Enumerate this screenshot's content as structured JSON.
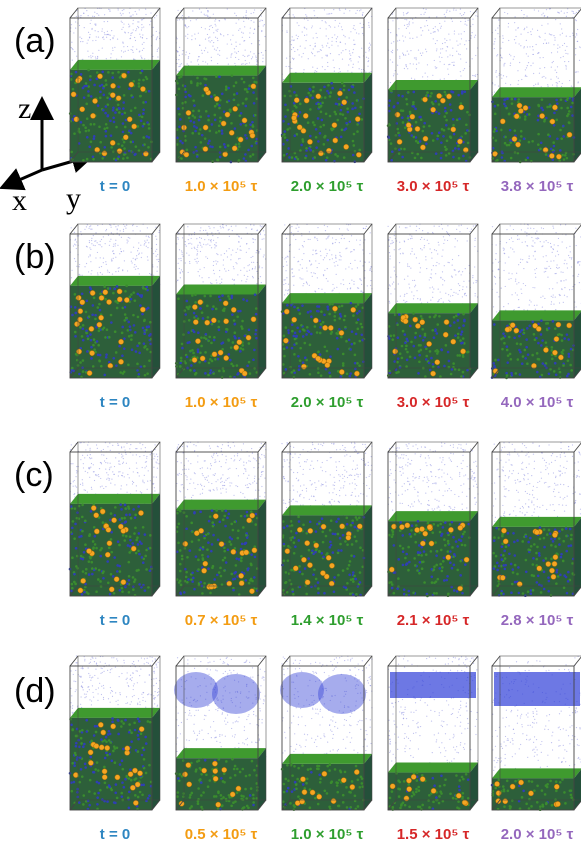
{
  "axes": {
    "z": "z",
    "x": "x",
    "y": "y"
  },
  "rows": [
    {
      "label": "(a)",
      "times": [
        "t = 0",
        "1.0 × 10⁵ τ",
        "2.0 × 10⁵ τ",
        "3.0 × 10⁵ τ",
        "3.8 × 10⁵ τ"
      ],
      "film_fraction": [
        0.64,
        0.6,
        0.55,
        0.5,
        0.45
      ],
      "vapor_cloud": [
        false,
        false,
        false,
        false,
        false
      ]
    },
    {
      "label": "(b)",
      "times": [
        "t = 0",
        "1.0 × 10⁵ τ",
        "2.0 × 10⁵ τ",
        "3.0 × 10⁵ τ",
        "4.0 × 10⁵ τ"
      ],
      "film_fraction": [
        0.64,
        0.58,
        0.52,
        0.45,
        0.4
      ],
      "vapor_cloud": [
        false,
        false,
        false,
        false,
        false
      ]
    },
    {
      "label": "(c)",
      "times": [
        "t = 0",
        "0.7 × 10⁵ τ",
        "1.4 × 10⁵ τ",
        "2.1 × 10⁵ τ",
        "2.8 × 10⁵ τ"
      ],
      "film_fraction": [
        0.64,
        0.6,
        0.56,
        0.52,
        0.48
      ],
      "vapor_cloud": [
        false,
        false,
        false,
        false,
        false
      ]
    },
    {
      "label": "(d)",
      "times": [
        "t = 0",
        "0.5 × 10⁵ τ",
        "1.0 × 10⁵ τ",
        "1.5 × 10⁵ τ",
        "2.0 × 10⁵ τ"
      ],
      "film_fraction": [
        0.64,
        0.36,
        0.32,
        0.26,
        0.22
      ],
      "vapor_cloud": [
        false,
        true,
        true,
        true,
        true
      ]
    }
  ],
  "time_colors": [
    "#2e86c1",
    "#f39c12",
    "#2e9e2e",
    "#d62728",
    "#9467bd"
  ],
  "colors": {
    "vapor": "#8a8ee0",
    "solvent": "#2f3fb5",
    "polymer": "#3a8c2e",
    "nanoparticle": "#f5a623",
    "frame": "#444444"
  }
}
